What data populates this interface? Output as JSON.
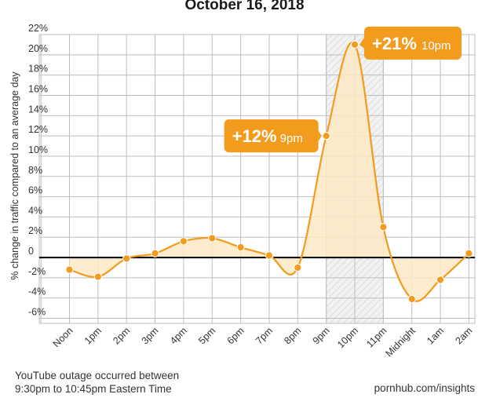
{
  "title": "October 16, 2018",
  "footnote": {
    "line1": "YouTube outage occurred between",
    "line2": "9:30pm to 10:45pm Eastern Time"
  },
  "source": "pornhub.com/insights",
  "colors": {
    "line": "#f29b1d",
    "fill": "#fde9c4",
    "callout": "#f29b1d",
    "grid": "#bdbdbd",
    "zero_line": "#000000",
    "outage_band": "#eeeeee"
  },
  "chart_data": {
    "type": "area",
    "title": "October 16, 2018",
    "xlabel": "",
    "ylabel": "% change in traffic compared to an average day",
    "categories": [
      "Noon",
      "1pm",
      "2pm",
      "3pm",
      "4pm",
      "5pm",
      "6pm",
      "7pm",
      "8pm",
      "9pm",
      "10pm",
      "11pm",
      "Midnight",
      "1am",
      "2am"
    ],
    "series": [
      {
        "values": [
          -1.2,
          -1.9,
          -0.1,
          0.4,
          1.6,
          1.9,
          1.0,
          0.2,
          -1.0,
          12,
          21,
          3,
          -4.1,
          -2.2,
          0.4
        ]
      }
    ],
    "ylim": [
      -6.5,
      22
    ],
    "yticks": [
      -6,
      -4,
      -2,
      0,
      2,
      4,
      6,
      8,
      10,
      12,
      14,
      16,
      18,
      20,
      22
    ],
    "ytick_labels": [
      "-6%",
      "-4%",
      "-2%",
      "0",
      "2%",
      "4%",
      "6%",
      "8%",
      "10%",
      "12%",
      "14%",
      "16%",
      "18%",
      "20%",
      "22%"
    ],
    "grid": true,
    "highlight_band": {
      "from": "9pm",
      "to": "10pm"
    },
    "annotations": [
      {
        "category": "9pm",
        "value": "+12%",
        "label": "9pm"
      },
      {
        "category": "10pm",
        "value": "+21%",
        "label": "10pm"
      }
    ]
  }
}
